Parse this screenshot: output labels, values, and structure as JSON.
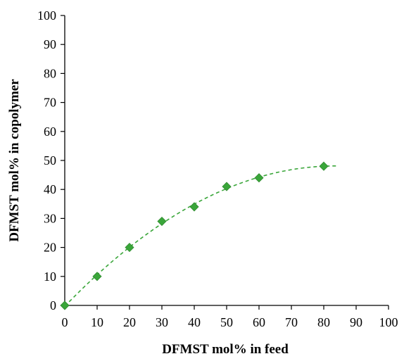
{
  "chart_data": {
    "type": "scatter",
    "title": "",
    "xlabel": "DFMST mol% in feed",
    "ylabel": "DFMST mol% in copolymer",
    "xlim": [
      0,
      100
    ],
    "ylim": [
      0,
      100
    ],
    "x_ticks": [
      "0",
      "10",
      "20",
      "30",
      "40",
      "50",
      "60",
      "70",
      "80",
      "90",
      "100"
    ],
    "y_ticks": [
      "0",
      "10",
      "20",
      "30",
      "40",
      "50",
      "60",
      "70",
      "80",
      "90",
      "100"
    ],
    "grid": false,
    "legend": "none",
    "marker": "diamond",
    "marker_color": "#3aa63a",
    "trendline": {
      "style": "dashed",
      "color": "#3aa63a",
      "type": "polynomial",
      "x_range": [
        0,
        84
      ]
    },
    "series": [
      {
        "x": [
          0,
          10,
          20,
          30,
          40,
          50,
          60,
          80
        ],
        "y": [
          0,
          10,
          20,
          29,
          34,
          41,
          44,
          48
        ]
      }
    ]
  }
}
